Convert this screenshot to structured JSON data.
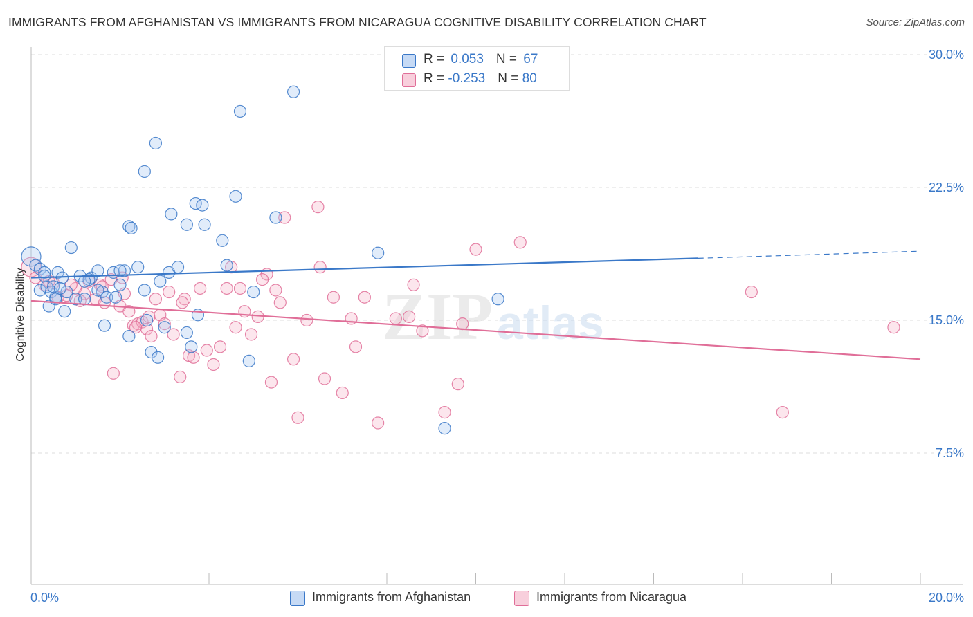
{
  "title": "IMMIGRANTS FROM AFGHANISTAN VS IMMIGRANTS FROM NICARAGUA COGNITIVE DISABILITY CORRELATION CHART",
  "source": "Source: ZipAtlas.com",
  "watermark": {
    "zip": "ZIP",
    "atlas": "atlas"
  },
  "colors": {
    "blue": "#3a78c8",
    "blue_fill": "#a9c8f0",
    "pink": "#e06e98",
    "pink_fill": "#f5b8cc",
    "grid": "#dddddd",
    "axis_label": "#3a78c8"
  },
  "legend_top": {
    "rows": [
      {
        "r_label": "R = ",
        "r_value": "0.053",
        "n_label": "N = ",
        "n_value": "67",
        "color": "blue"
      },
      {
        "r_label": "R = ",
        "r_value": "-0.253",
        "n_label": "N = ",
        "n_value": "80",
        "color": "pink"
      }
    ]
  },
  "legend_bottom": {
    "items": [
      {
        "label": "Immigrants from Afghanistan",
        "color": "blue"
      },
      {
        "label": "Immigrants from Nicaragua",
        "color": "pink"
      }
    ]
  },
  "chart_data": {
    "type": "scatter",
    "title": "IMMIGRANTS FROM AFGHANISTAN VS IMMIGRANTS FROM NICARAGUA COGNITIVE DISABILITY CORRELATION CHART",
    "xlabel": "",
    "ylabel": "Cognitive Disability",
    "xlim": [
      0,
      20
    ],
    "ylim": [
      0,
      31
    ],
    "x_tick_labels": [
      "0.0%",
      "20.0%"
    ],
    "y_ticks": [
      7.5,
      15.0,
      22.5,
      30.0
    ],
    "y_tick_labels": [
      "7.5%",
      "15.0%",
      "22.5%",
      "30.0%"
    ],
    "grid": true,
    "legend_position": "top-center",
    "series": [
      {
        "name": "Immigrants from Afghanistan",
        "color": "blue",
        "trend": {
          "x0": 0,
          "y0": 17.4,
          "x1": 15.0,
          "y1": 18.5,
          "dashed_to_x": 20,
          "dashed_to_y": 18.9
        },
        "points": [
          [
            0.0,
            18.6
          ],
          [
            0.1,
            18.1
          ],
          [
            0.2,
            17.9
          ],
          [
            0.3,
            17.7
          ],
          [
            0.2,
            16.7
          ],
          [
            0.35,
            16.9
          ],
          [
            0.45,
            16.6
          ],
          [
            0.55,
            16.3
          ],
          [
            0.4,
            15.8
          ],
          [
            0.6,
            17.7
          ],
          [
            0.7,
            17.4
          ],
          [
            0.75,
            15.5
          ],
          [
            0.8,
            16.6
          ],
          [
            1.0,
            16.2
          ],
          [
            1.1,
            17.5
          ],
          [
            1.2,
            16.2
          ],
          [
            1.35,
            17.4
          ],
          [
            1.5,
            17.8
          ],
          [
            1.6,
            16.6
          ],
          [
            1.7,
            16.3
          ],
          [
            1.85,
            17.7
          ],
          [
            2.0,
            17.0
          ],
          [
            2.1,
            17.8
          ],
          [
            2.2,
            20.3
          ],
          [
            2.25,
            20.2
          ],
          [
            2.4,
            18.0
          ],
          [
            2.55,
            16.7
          ],
          [
            2.6,
            15.0
          ],
          [
            2.9,
            17.2
          ],
          [
            3.1,
            17.7
          ],
          [
            3.3,
            18.0
          ],
          [
            3.5,
            20.4
          ],
          [
            3.7,
            21.6
          ],
          [
            3.85,
            21.5
          ],
          [
            3.9,
            20.4
          ],
          [
            4.3,
            19.5
          ],
          [
            4.4,
            18.1
          ],
          [
            4.6,
            22.0
          ],
          [
            5.0,
            16.6
          ],
          [
            5.5,
            20.8
          ],
          [
            2.55,
            23.4
          ],
          [
            2.8,
            25.0
          ],
          [
            4.7,
            26.8
          ],
          [
            5.9,
            27.9
          ],
          [
            7.8,
            18.8
          ],
          [
            9.3,
            8.9
          ],
          [
            10.5,
            16.2
          ],
          [
            0.5,
            16.9
          ],
          [
            0.9,
            19.1
          ],
          [
            1.3,
            17.3
          ],
          [
            1.65,
            14.7
          ],
          [
            2.2,
            14.1
          ],
          [
            2.7,
            13.2
          ],
          [
            2.85,
            12.9
          ],
          [
            3.0,
            14.6
          ],
          [
            3.5,
            14.3
          ],
          [
            3.6,
            13.5
          ],
          [
            3.75,
            15.3
          ],
          [
            4.9,
            12.7
          ],
          [
            3.15,
            21.0
          ],
          [
            0.55,
            16.2
          ],
          [
            1.2,
            17.2
          ],
          [
            1.9,
            16.3
          ],
          [
            0.3,
            17.5
          ],
          [
            1.5,
            16.7
          ],
          [
            2.0,
            17.8
          ],
          [
            0.65,
            16.8
          ]
        ]
      },
      {
        "name": "Immigrants from Nicaragua",
        "color": "pink",
        "trend": {
          "x0": 0,
          "y0": 16.1,
          "x1": 20,
          "y1": 12.8
        },
        "points": [
          [
            0.0,
            18.0
          ],
          [
            0.1,
            17.4
          ],
          [
            0.3,
            17.0
          ],
          [
            0.5,
            17.1
          ],
          [
            0.6,
            16.3
          ],
          [
            0.8,
            16.4
          ],
          [
            1.0,
            16.8
          ],
          [
            1.2,
            16.5
          ],
          [
            1.3,
            17.2
          ],
          [
            1.45,
            16.2
          ],
          [
            1.55,
            17.0
          ],
          [
            1.65,
            16.0
          ],
          [
            1.8,
            17.3
          ],
          [
            2.0,
            15.8
          ],
          [
            2.1,
            16.5
          ],
          [
            2.2,
            15.5
          ],
          [
            2.3,
            14.7
          ],
          [
            2.4,
            14.8
          ],
          [
            2.5,
            14.9
          ],
          [
            2.6,
            14.5
          ],
          [
            2.7,
            14.1
          ],
          [
            2.8,
            16.2
          ],
          [
            2.9,
            15.3
          ],
          [
            3.0,
            14.8
          ],
          [
            3.1,
            16.6
          ],
          [
            3.2,
            14.2
          ],
          [
            3.35,
            11.8
          ],
          [
            3.45,
            16.2
          ],
          [
            3.55,
            13.0
          ],
          [
            3.65,
            12.9
          ],
          [
            3.8,
            16.8
          ],
          [
            3.95,
            13.3
          ],
          [
            4.1,
            12.5
          ],
          [
            4.25,
            13.5
          ],
          [
            4.4,
            16.8
          ],
          [
            4.6,
            14.6
          ],
          [
            4.8,
            15.5
          ],
          [
            4.95,
            14.2
          ],
          [
            5.1,
            15.2
          ],
          [
            5.3,
            17.6
          ],
          [
            5.4,
            11.5
          ],
          [
            5.5,
            16.7
          ],
          [
            5.6,
            16.0
          ],
          [
            5.7,
            20.8
          ],
          [
            5.9,
            12.8
          ],
          [
            6.0,
            9.5
          ],
          [
            6.2,
            15.0
          ],
          [
            6.45,
            21.4
          ],
          [
            6.5,
            18.0
          ],
          [
            6.6,
            11.7
          ],
          [
            6.8,
            16.3
          ],
          [
            7.0,
            10.9
          ],
          [
            7.2,
            15.1
          ],
          [
            7.3,
            13.5
          ],
          [
            7.5,
            16.3
          ],
          [
            7.8,
            9.2
          ],
          [
            8.2,
            15.1
          ],
          [
            8.5,
            15.2
          ],
          [
            8.6,
            17.0
          ],
          [
            8.8,
            14.4
          ],
          [
            9.3,
            9.8
          ],
          [
            9.6,
            11.4
          ],
          [
            9.7,
            14.8
          ],
          [
            10.0,
            19.0
          ],
          [
            11.0,
            19.4
          ],
          [
            16.2,
            16.6
          ],
          [
            16.9,
            9.8
          ],
          [
            19.4,
            14.6
          ],
          [
            1.85,
            12.0
          ],
          [
            4.5,
            18.0
          ],
          [
            4.7,
            16.8
          ],
          [
            5.2,
            17.3
          ],
          [
            3.4,
            16.0
          ],
          [
            2.35,
            14.6
          ],
          [
            0.9,
            17.0
          ],
          [
            1.1,
            16.1
          ],
          [
            2.65,
            15.2
          ],
          [
            0.4,
            17.2
          ],
          [
            1.6,
            16.9
          ],
          [
            2.05,
            17.4
          ]
        ]
      }
    ]
  }
}
